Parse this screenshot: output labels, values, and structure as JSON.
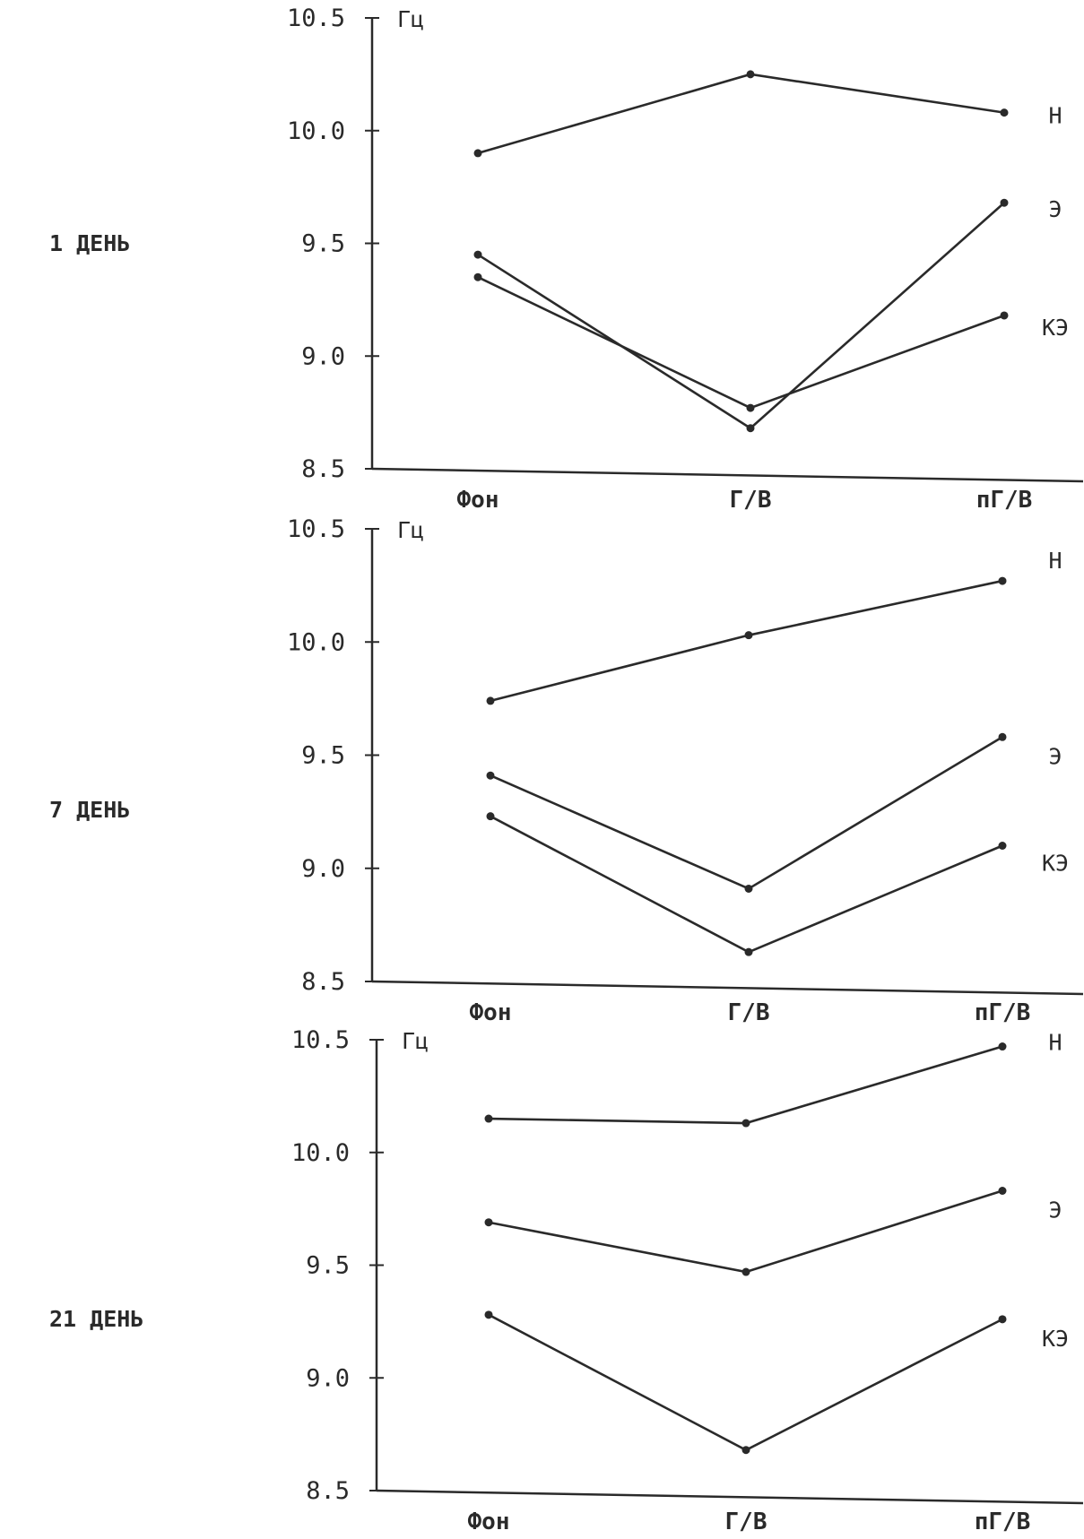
{
  "chart_data": [
    {
      "type": "line",
      "panel_label": "1 ДЕНЬ",
      "unit": "Гц",
      "ylim": [
        8.5,
        10.5
      ],
      "yticks": [
        "10.5",
        "10.0",
        "9.5",
        "9.0",
        "8.5"
      ],
      "categories": [
        "Фон",
        "Г/В",
        "пГ/В"
      ],
      "series": [
        {
          "name": "Н",
          "values": [
            9.9,
            10.25,
            10.08
          ]
        },
        {
          "name": "Э",
          "values": [
            9.45,
            8.68,
            9.68
          ]
        },
        {
          "name": "КЭ",
          "values": [
            9.35,
            8.77,
            9.18
          ]
        }
      ]
    },
    {
      "type": "line",
      "panel_label": "7 ДЕНЬ",
      "unit": "Гц",
      "ylim": [
        8.5,
        10.5
      ],
      "yticks": [
        "10.5",
        "10.0",
        "9.5",
        "9.0",
        "8.5"
      ],
      "categories": [
        "Фон",
        "Г/В",
        "пГ/В"
      ],
      "series": [
        {
          "name": "Н",
          "values": [
            9.74,
            10.03,
            10.27
          ]
        },
        {
          "name": "Э",
          "values": [
            9.41,
            8.91,
            9.58
          ]
        },
        {
          "name": "КЭ",
          "values": [
            9.23,
            8.63,
            9.1
          ]
        }
      ]
    },
    {
      "type": "line",
      "panel_label": "21 ДЕНЬ",
      "unit": "Гц",
      "ylim": [
        8.5,
        10.5
      ],
      "yticks": [
        "10.5",
        "10.0",
        "9.5",
        "9.0",
        "8.5"
      ],
      "categories": [
        "Фон",
        "Г/В",
        "пГ/В"
      ],
      "series": [
        {
          "name": "Н",
          "values": [
            10.15,
            10.13,
            10.47
          ]
        },
        {
          "name": "Э",
          "values": [
            9.69,
            9.47,
            9.83
          ]
        },
        {
          "name": "КЭ",
          "values": [
            9.28,
            8.68,
            9.26
          ]
        }
      ]
    }
  ],
  "style": {
    "line_color": "#2a2a2a",
    "background": "#ffffff"
  }
}
